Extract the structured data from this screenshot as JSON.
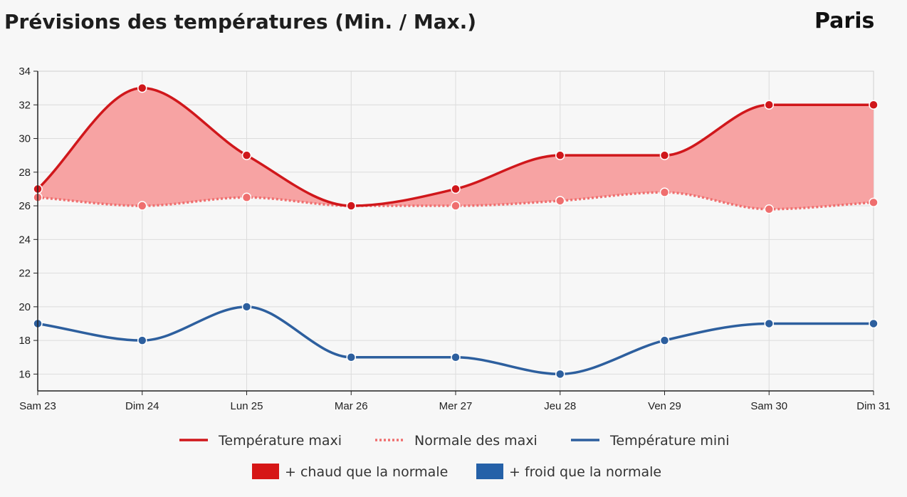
{
  "header": {
    "title": "Prévisions des températures (Min. / Max.)",
    "city": "Paris"
  },
  "colors": {
    "max_line": "#d0171b",
    "normal_line": "#ef6e6e",
    "min_line": "#2d5f9e",
    "warmer_fill": "#f7a3a3",
    "legend_warm": "#d61616",
    "legend_cold": "#2561a8",
    "grid": "#dcdcdc",
    "axis": "#222222"
  },
  "legend": {
    "items": [
      {
        "label": "Température maxi",
        "style": "solid",
        "color": "#d0171b"
      },
      {
        "label": "Normale des maxi",
        "style": "dotted",
        "color": "#ef6e6e"
      },
      {
        "label": "Température mini",
        "style": "solid",
        "color": "#2d5f9e"
      }
    ],
    "swatches": [
      {
        "label": "+ chaud que la normale",
        "color": "#d61616"
      },
      {
        "label": "+ froid que la normale",
        "color": "#2561a8"
      }
    ]
  },
  "chart_data": {
    "type": "line",
    "categories": [
      "Sam 23",
      "Dim 24",
      "Lun 25",
      "Mar 26",
      "Mer 27",
      "Jeu 28",
      "Ven 29",
      "Sam 30",
      "Dim 31"
    ],
    "series": [
      {
        "name": "Température maxi",
        "values": [
          27,
          33,
          29,
          26,
          27,
          29,
          29,
          32,
          32
        ]
      },
      {
        "name": "Normale des maxi",
        "values": [
          26.5,
          26,
          26.5,
          26,
          26,
          26.3,
          26.8,
          25.8,
          26.2
        ]
      },
      {
        "name": "Température mini",
        "values": [
          19,
          18,
          20,
          17,
          17,
          16,
          18,
          19,
          19
        ]
      }
    ],
    "title": "Prévisions des températures (Min. / Max.)",
    "xlabel": "",
    "ylabel": "",
    "ylim": [
      15,
      34
    ],
    "yticks": [
      16,
      18,
      20,
      22,
      24,
      26,
      28,
      30,
      32,
      34
    ],
    "grid": true,
    "legend_position": "bottom"
  }
}
